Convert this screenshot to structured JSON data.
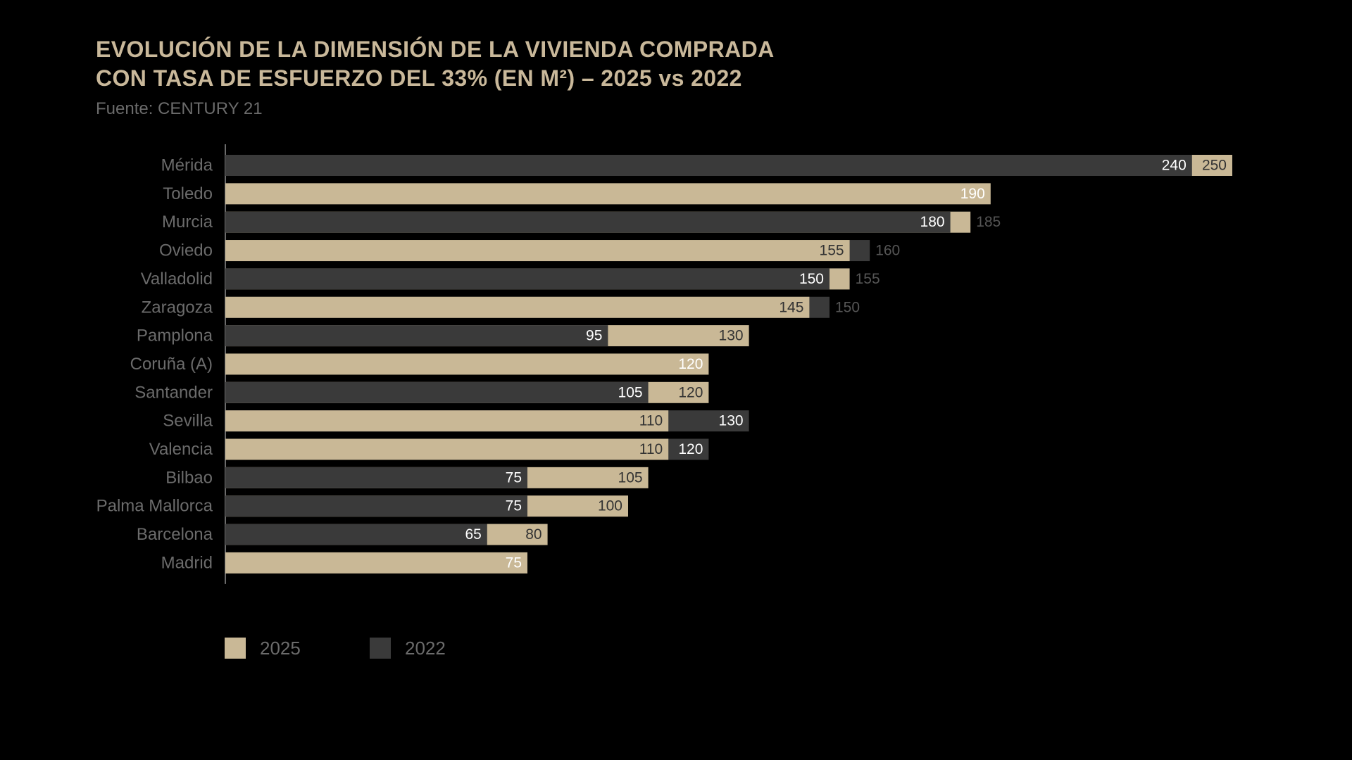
{
  "title_line1": "EVOLUCIÓN DE LA DIMENSIÓN DE LA VIVIENDA COMPRADA",
  "title_line2": "CON TASA DE ESFUERZO DEL 33% (EN M²) – 2025 vs 2022",
  "source": "Fuente: CENTURY 21",
  "colors": {
    "series_2025": "#c9b896",
    "series_2022": "#3a3a3a",
    "background": "#000000",
    "category_label": "#6b6b6b",
    "value_label_light": "#ffffff",
    "value_label_on_beige": "#333333",
    "value_label_outside": "#555555"
  },
  "legend": [
    {
      "label": "2025",
      "color": "#c9b896"
    },
    {
      "label": "2022",
      "color": "#3a3a3a"
    }
  ],
  "chart_data": {
    "type": "bar",
    "orientation": "horizontal",
    "title": "EVOLUCIÓN DE LA DIMENSIÓN DE LA VIVIENDA COMPRADA CON TASA DE ESFUERZO DEL 33% (EN M²) – 2025 vs 2022",
    "categories": [
      "Mérida",
      "Toledo",
      "Murcia",
      "Oviedo",
      "Valladolid",
      "Zaragoza",
      "Pamplona",
      "Coruña (A)",
      "Santander",
      "Sevilla",
      "Valencia",
      "Bilbao",
      "Palma Mallorca",
      "Barcelona",
      "Madrid"
    ],
    "series": [
      {
        "name": "2025",
        "values": [
          250,
          190,
          185,
          155,
          155,
          145,
          130,
          120,
          120,
          110,
          110,
          105,
          100,
          80,
          75
        ]
      },
      {
        "name": "2022",
        "values": [
          240,
          190,
          180,
          160,
          150,
          150,
          95,
          120,
          105,
          130,
          120,
          75,
          75,
          65,
          75
        ]
      }
    ],
    "xlim": [
      0,
      260
    ],
    "grid": false,
    "legend_position": "bottom-left"
  }
}
